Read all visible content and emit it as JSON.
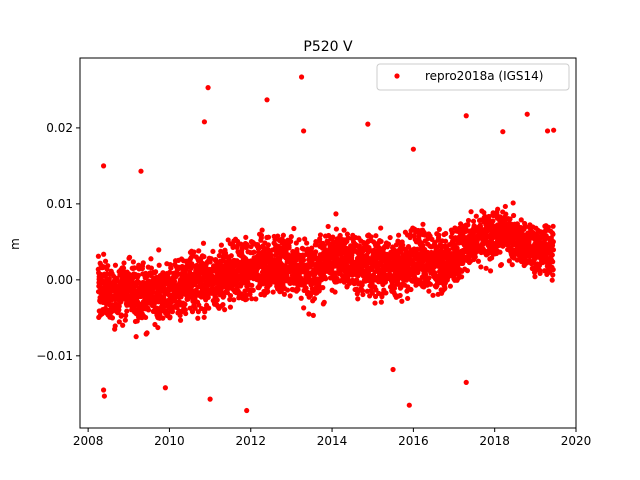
{
  "chart_data": {
    "type": "scatter",
    "title": "P520 V",
    "xlabel": "",
    "ylabel": "m",
    "xlim": [
      2007.8,
      2020.0
    ],
    "ylim": [
      -0.0195,
      0.0292
    ],
    "x_ticks": [
      2008,
      2010,
      2012,
      2014,
      2016,
      2018,
      2020
    ],
    "x_tick_labels": [
      "2008",
      "2010",
      "2012",
      "2014",
      "2016",
      "2018",
      "2020"
    ],
    "y_ticks": [
      -0.01,
      0.0,
      0.01,
      0.02
    ],
    "y_tick_labels": [
      "−0.01",
      "0.00",
      "0.01",
      "0.02"
    ],
    "legend_position": "top-right",
    "grid": false,
    "series": [
      {
        "name": "repro2018a (IGS14)",
        "color": "#ff0000",
        "marker": "circle",
        "x": [
          2008.3,
          2008.6,
          2009.0,
          2009.4,
          2009.8,
          2010.2,
          2010.6,
          2011.0,
          2011.4,
          2011.8,
          2012.2,
          2012.6,
          2013.0,
          2013.4,
          2013.8,
          2014.2,
          2014.6,
          2015.0,
          2015.4,
          2015.8,
          2016.2,
          2016.6,
          2017.0,
          2017.4,
          2017.8,
          2018.2,
          2018.6,
          2019.0,
          2019.4
        ],
        "y": [
          -0.001,
          -0.002,
          -0.001,
          -0.002,
          -0.002,
          -0.001,
          0.0,
          0.0,
          0.001,
          0.001,
          0.002,
          0.002,
          0.002,
          0.001,
          0.002,
          0.003,
          0.002,
          0.002,
          0.002,
          0.002,
          0.003,
          0.002,
          0.003,
          0.005,
          0.006,
          0.006,
          0.005,
          0.004,
          0.004
        ],
        "y_spread": [
          0.005,
          0.005,
          0.005,
          0.005,
          0.005,
          0.005,
          0.005,
          0.005,
          0.005,
          0.005,
          0.005,
          0.005,
          0.005,
          0.005,
          0.005,
          0.005,
          0.005,
          0.005,
          0.005,
          0.005,
          0.005,
          0.005,
          0.005,
          0.004,
          0.004,
          0.004,
          0.004,
          0.004,
          0.004
        ],
        "outliers": [
          [
            2008.38,
            0.015
          ],
          [
            2008.38,
            -0.0145
          ],
          [
            2008.4,
            -0.0153
          ],
          [
            2009.3,
            0.0143
          ],
          [
            2009.9,
            -0.0142
          ],
          [
            2010.86,
            0.0208
          ],
          [
            2010.95,
            0.0253
          ],
          [
            2011.0,
            -0.0157
          ],
          [
            2011.9,
            -0.0172
          ],
          [
            2012.4,
            0.0237
          ],
          [
            2013.25,
            0.0267
          ],
          [
            2013.3,
            0.0196
          ],
          [
            2014.88,
            0.0205
          ],
          [
            2015.5,
            -0.0118
          ],
          [
            2015.9,
            -0.0165
          ],
          [
            2016.0,
            0.0172
          ],
          [
            2017.3,
            -0.0135
          ],
          [
            2017.3,
            0.0216
          ],
          [
            2018.2,
            0.0195
          ],
          [
            2018.8,
            0.0218
          ],
          [
            2019.3,
            0.0196
          ],
          [
            2019.45,
            0.0197
          ]
        ]
      }
    ]
  }
}
